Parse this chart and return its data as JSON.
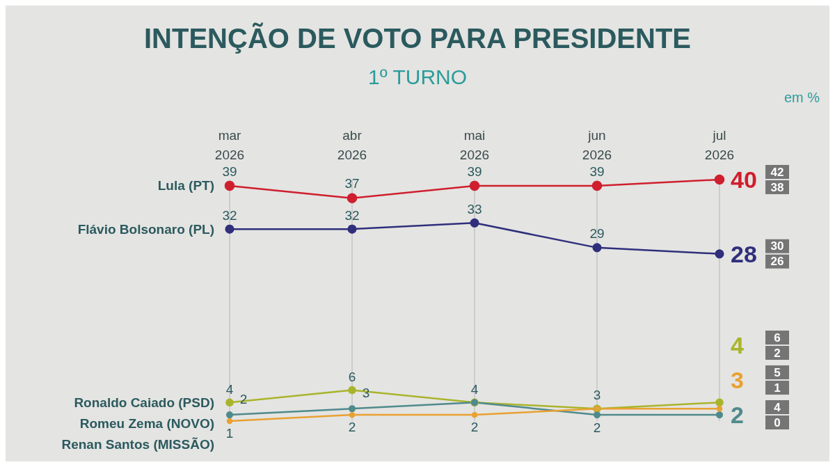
{
  "chart_data": {
    "type": "line",
    "title": "INTENÇÃO DE VOTO PARA PRESIDENTE",
    "subtitle": "1º TURNO",
    "annotations": [
      "42",
      "38",
      "30",
      "26",
      "6",
      "2",
      "4",
      "0",
      "5",
      "1",
      "em %"
    ],
    "categories": [
      "mar 2026",
      "abr 2026",
      "mai 2026",
      "jun 2026",
      "jul 2026"
    ],
    "grid": "x",
    "marker": "circle",
    "line_style": "solid",
    "series": [
      {
        "name": "Lula (PT)",
        "color": "#cf1f2e",
        "values": [
          39,
          37,
          39,
          39,
          40
        ],
        "value_labels": [
          "39",
          "37",
          "39",
          "39",
          "40"
        ]
      },
      {
        "name": "Flávio Bolsonaro (PL)",
        "color": "#2f2f7c",
        "values": [
          32,
          32,
          33,
          29,
          28
        ],
        "value_labels": [
          "32",
          "32",
          "33",
          "29",
          "28"
        ]
      },
      {
        "name": "Ronaldo Caiado (PSD)",
        "color": "#a9b42c",
        "values": [
          4,
          6,
          4,
          3,
          4
        ],
        "value_labels": [
          "4",
          "6",
          null,
          "3",
          "4"
        ]
      },
      {
        "name": "Romeu Zema (NOVO)",
        "color": "#4f8a8c",
        "values": [
          2,
          3,
          4,
          2,
          2
        ],
        "value_labels": [
          "2",
          "3",
          "4",
          "2",
          "2"
        ]
      },
      {
        "name": "Renan Santos (MISSÃO)",
        "color": "#e9a132",
        "values": [
          1,
          2,
          2,
          3,
          3
        ],
        "value_labels": [
          "1",
          "2",
          "2",
          null,
          "3"
        ]
      }
    ]
  }
}
